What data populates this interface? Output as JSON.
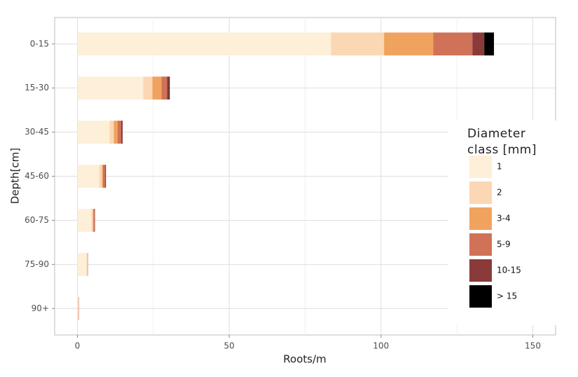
{
  "chart_data": {
    "type": "hbar-stacked",
    "x_label": "Roots/m",
    "y_label": "Depth[cm]",
    "categories": [
      "0-15",
      "15-30",
      "30-45",
      "45-60",
      "60-75",
      "75-90",
      "90+"
    ],
    "legend_title": "Diameter class [mm]",
    "series": [
      {
        "name": "1",
        "color": "#fdefd8",
        "values": [
          83.5,
          21.7,
          10.6,
          7.2,
          4.6,
          3.0,
          0.2
        ]
      },
      {
        "name": "2",
        "color": "#fbd7b4",
        "values": [
          17.5,
          3.0,
          1.4,
          0.9,
          0.5,
          0.3,
          0.1
        ]
      },
      {
        "name": "3-4",
        "color": "#f0a35e",
        "values": [
          16.2,
          3.0,
          1.2,
          0.3,
          0.2,
          0.1,
          0.1
        ]
      },
      {
        "name": "5-9",
        "color": "#cf7257",
        "values": [
          12.9,
          1.8,
          1.2,
          0.7,
          0.4,
          0.1,
          0.1
        ]
      },
      {
        "name": "10-15",
        "color": "#8b3a3a",
        "values": [
          3.9,
          0.7,
          0.5,
          0.3,
          0.1,
          0,
          0
        ]
      },
      {
        "name": "> 15",
        "color": "#000000",
        "values": [
          3.2,
          0.2,
          0,
          0,
          0,
          0,
          0
        ]
      }
    ],
    "xlim": [
      -7.5,
      157.5
    ],
    "xticks": [
      0,
      50,
      100,
      150
    ],
    "xticks_minor": [
      25,
      75,
      125
    ],
    "grid": true
  }
}
